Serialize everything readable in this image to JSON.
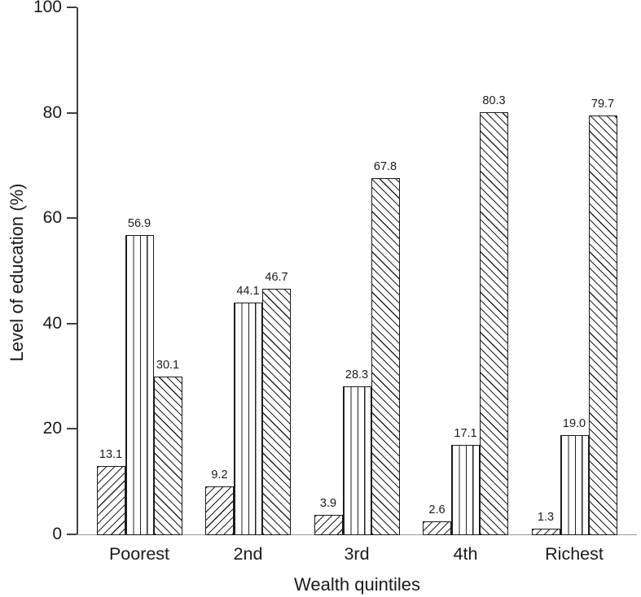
{
  "chart_data": {
    "type": "bar",
    "title": "",
    "xlabel": "Wealth quintiles",
    "ylabel": "Level of education (%)",
    "categories": [
      "Poorest",
      "2nd",
      "3rd",
      "4th",
      "Richest"
    ],
    "series": [
      {
        "name": "series-1",
        "pattern": "diagonal-up-hatch",
        "fill": "#ffffff",
        "hatch_color": "#222222",
        "values": [
          13.1,
          9.2,
          3.9,
          2.6,
          1.3
        ]
      },
      {
        "name": "series-2",
        "pattern": "vertical-line-hatch",
        "fill": "#ffffff",
        "hatch_color": "#222222",
        "values": [
          56.9,
          44.1,
          28.3,
          17.1,
          19.0
        ]
      },
      {
        "name": "series-3",
        "pattern": "diagonal-down-hatch",
        "fill": "#ffffff",
        "hatch_color": "#222222",
        "values": [
          30.1,
          46.7,
          67.8,
          80.3,
          79.7
        ]
      }
    ],
    "ylim": [
      0,
      100
    ],
    "yticks": [
      0,
      20,
      40,
      60,
      80,
      100
    ],
    "grid": false,
    "legend_position": "none",
    "value_labels": true,
    "value_label_decimals": 1,
    "colors": {
      "text": "#1a1a1a",
      "y_axis_line": "#3f3f3f",
      "x_axis_line": "#999999",
      "bar_border": "#1a1a1a",
      "background": "#ffffff"
    }
  }
}
